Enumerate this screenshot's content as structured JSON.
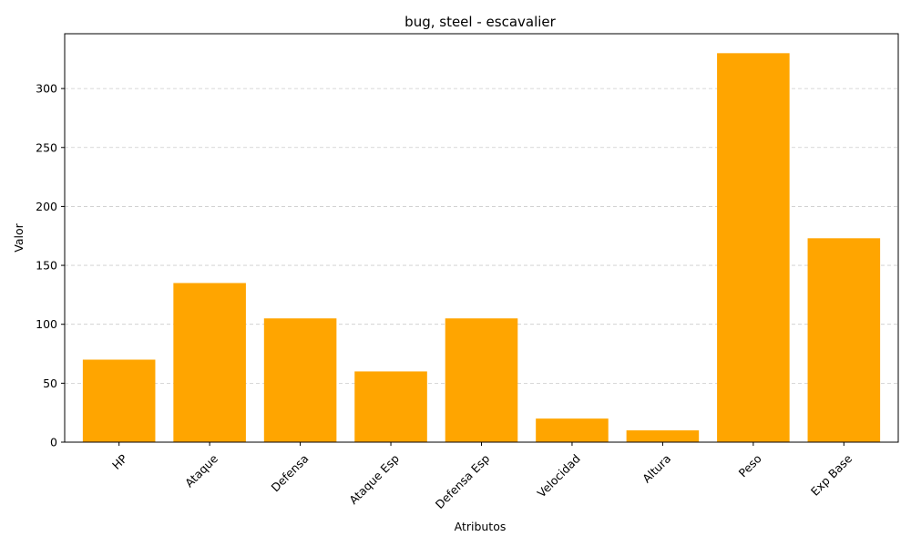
{
  "chart_data": {
    "type": "bar",
    "title": "bug, steel - escavalier",
    "xlabel": "Atributos",
    "ylabel": "Valor",
    "categories": [
      "HP",
      "Ataque",
      "Defensa",
      "Ataque Esp",
      "Defensa Esp",
      "Velocidad",
      "Altura",
      "Peso",
      "Exp Base"
    ],
    "values": [
      70,
      135,
      105,
      60,
      105,
      20,
      10,
      330,
      173
    ],
    "ylim": [
      0,
      346.5
    ],
    "yticks": [
      0,
      50,
      100,
      150,
      200,
      250,
      300
    ],
    "grid": "y-dashed",
    "bar_color": "#ffa500"
  }
}
